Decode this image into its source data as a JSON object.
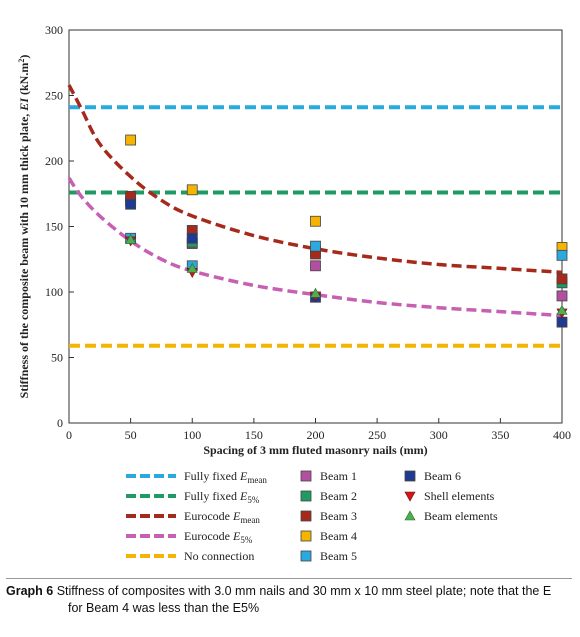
{
  "chart_data": {
    "type": "scatter",
    "xlabel": "Spacing of 3 mm fluted masonry nails (mm)",
    "ylabel": "Stiffness of the composite beam with 10 mm thick plate, EI (kN.m²)",
    "xlim": [
      0,
      400
    ],
    "ylim": [
      0,
      300
    ],
    "xticks": [
      0,
      50,
      100,
      150,
      200,
      250,
      300,
      350,
      400
    ],
    "yticks": [
      0,
      50,
      100,
      150,
      200,
      250,
      300
    ],
    "grid": false,
    "legend_position": "bottom",
    "series": [
      {
        "name": "Fully fixed E_mean",
        "kind": "hline",
        "value": 241,
        "color": "#29a9e0"
      },
      {
        "name": "Fully fixed E_5%",
        "kind": "hline",
        "value": 176,
        "color": "#1e9a63"
      },
      {
        "name": "Eurocode E_mean",
        "kind": "curve",
        "color": "#a52a1c",
        "x": [
          0,
          10,
          25,
          50,
          75,
          100,
          150,
          200,
          250,
          300,
          350,
          400
        ],
        "y": [
          258,
          240,
          213,
          188,
          170,
          158,
          143,
          133,
          126,
          121,
          118,
          115
        ]
      },
      {
        "name": "Eurocode E_5%",
        "kind": "curve",
        "color": "#c75fb3",
        "x": [
          0,
          10,
          25,
          50,
          75,
          100,
          150,
          200,
          250,
          300,
          350,
          400
        ],
        "y": [
          187,
          173,
          158,
          139,
          125,
          116,
          105,
          98,
          92,
          88,
          85,
          82
        ]
      },
      {
        "name": "No connection",
        "kind": "hline",
        "value": 59,
        "color": "#f5b400"
      },
      {
        "name": "Beam 1",
        "kind": "square",
        "color": "#b24fa0",
        "x": [
          50,
          100,
          200,
          400
        ],
        "y": [
          170,
          137,
          120,
          97
        ]
      },
      {
        "name": "Beam 2",
        "kind": "square",
        "color": "#1e9a63",
        "x": [
          50,
          100,
          200,
          400
        ],
        "y": [
          169,
          138,
          131,
          107
        ]
      },
      {
        "name": "Beam 3",
        "kind": "square",
        "color": "#a52a1c",
        "x": [
          50,
          100,
          200,
          400
        ],
        "y": [
          173,
          147,
          129,
          110
        ]
      },
      {
        "name": "Beam 4",
        "kind": "square",
        "color": "#f5b400",
        "x": [
          50,
          100,
          200,
          400
        ],
        "y": [
          216,
          178,
          154,
          134
        ]
      },
      {
        "name": "Beam 5",
        "kind": "square",
        "color": "#29a9e0",
        "x": [
          50,
          100,
          200,
          400
        ],
        "y": [
          141,
          120,
          135,
          128
        ]
      },
      {
        "name": "Beam 6",
        "kind": "square",
        "color": "#1f3a93",
        "x": [
          50,
          100,
          200,
          400
        ],
        "y": [
          167,
          141,
          96,
          77
        ]
      },
      {
        "name": "Shell elements",
        "kind": "triangle-down",
        "color": "#cc1a1a",
        "x": [
          50,
          100,
          200,
          400
        ],
        "y": [
          139,
          115,
          97,
          84
        ]
      },
      {
        "name": "Beam elements",
        "kind": "triangle-up",
        "color": "#4caf50",
        "x": [
          50,
          100,
          200,
          400
        ],
        "y": [
          140,
          118,
          99,
          86
        ]
      }
    ],
    "legend": [
      {
        "label": "Fully fixed ",
        "sub": "mean",
        "italic": "E",
        "series": 0
      },
      {
        "label": "Fully fixed ",
        "sub": "5%",
        "italic": "E",
        "series": 1
      },
      {
        "label": "Eurocode ",
        "sub": "mean",
        "italic": "E",
        "series": 2
      },
      {
        "label": "Eurocode ",
        "sub": "5%",
        "italic": "E",
        "series": 3
      },
      {
        "label": "No connection",
        "sub": "",
        "italic": "",
        "series": 4
      },
      {
        "label": "Beam 1",
        "sub": "",
        "italic": "",
        "series": 5
      },
      {
        "label": "Beam 2",
        "sub": "",
        "italic": "",
        "series": 6
      },
      {
        "label": "Beam 3",
        "sub": "",
        "italic": "",
        "series": 7
      },
      {
        "label": "Beam 4",
        "sub": "",
        "italic": "",
        "series": 8
      },
      {
        "label": "Beam 5",
        "sub": "",
        "italic": "",
        "series": 9
      },
      {
        "label": "Beam 6",
        "sub": "",
        "italic": "",
        "series": 10
      },
      {
        "label": "Shell elements",
        "sub": "",
        "italic": "",
        "series": 11
      },
      {
        "label": "Beam elements",
        "sub": "",
        "italic": "",
        "series": 12
      }
    ]
  },
  "caption": {
    "label": "Graph 6",
    "line1": " Stiffness of composites with 3.0 mm nails and 30 mm x 10 mm steel plate; note that the E",
    "line2": "for Beam 4 was less than the E5%"
  }
}
